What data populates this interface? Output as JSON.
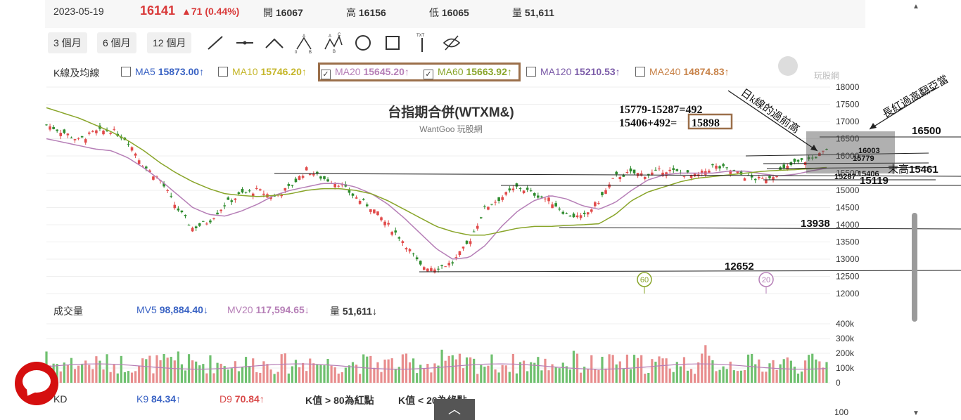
{
  "header": {
    "date": "2023-05-19",
    "price": "16141",
    "change": "▲71 (0.44%)",
    "open_label": "開",
    "open": "16067",
    "high_label": "高",
    "high": "16156",
    "low_label": "低",
    "low": "16065",
    "volume_label": "量",
    "volume": "51,611"
  },
  "periods": [
    "3 個月",
    "6 個月",
    "12 個月"
  ],
  "tools": [
    "line-tool-icon",
    "horizontal-line-icon",
    "angle-tool-icon",
    "abc-pattern-icon",
    "abcd-pattern-icon",
    "circle-tool-icon",
    "rectangle-tool-icon",
    "text-tool-icon",
    "hide-icon"
  ],
  "ma_legend": {
    "label": "K線及均線",
    "items": [
      {
        "name": "MA5",
        "value": "15873.00↑",
        "color": "#3a63c4",
        "checked": false
      },
      {
        "name": "MA10",
        "value": "15746.20↑",
        "color": "#c5b62a",
        "checked": false
      },
      {
        "name": "MA20",
        "value": "15645.20↑",
        "color": "#b67fb7",
        "checked": true
      },
      {
        "name": "MA60",
        "value": "15663.92↑",
        "color": "#89a52a",
        "checked": true
      },
      {
        "name": "MA120",
        "value": "15210.53↑",
        "color": "#7b5ba8",
        "checked": false
      },
      {
        "name": "MA240",
        "value": "14874.83↑",
        "color": "#c8834a",
        "checked": false
      }
    ]
  },
  "watermark": {
    "brand": "玩股網"
  },
  "volume_legend": {
    "label": "成交量",
    "mv5_name": "MV5",
    "mv5": "98,884.40↓",
    "mv20_name": "MV20",
    "mv20": "117,594.65↓",
    "vol_name": "量",
    "vol": "51,611↓"
  },
  "kd_legend": {
    "label": "KD",
    "k_name": "K9",
    "k": "84.34↑",
    "d_name": "D9",
    "d": "70.84↑",
    "note1": "K值 > 80為紅點",
    "note2": "K值 < 20為綠點"
  },
  "kd_axis_label": "100",
  "chart_data": {
    "type": "candlestick",
    "title": "台指期合併(WTXM&)",
    "subtitle": "WantGoo 玩股網",
    "y_ticks": [
      18000,
      17500,
      17000,
      16500,
      16000,
      15500,
      15000,
      14500,
      14000,
      13500,
      13000,
      12500,
      12000
    ],
    "ylim": [
      11800,
      18000
    ],
    "volume_ticks": [
      "400k",
      "300k",
      "200k",
      "100k",
      "0"
    ],
    "volume_ylim": [
      0,
      400000
    ],
    "colors": {
      "up": "#e14a4a",
      "down": "#2e8b2e",
      "ma20": "#b67fb7",
      "ma60": "#89a52a"
    },
    "close_path": [
      16900,
      16700,
      16450,
      16700,
      16750,
      16450,
      15700,
      15300,
      14500,
      13900,
      14100,
      14600,
      14900,
      15000,
      14800,
      15100,
      15600,
      15350,
      15200,
      14800,
      14500,
      14000,
      13500,
      12800,
      12750,
      12900,
      13500,
      14500,
      14800,
      15100,
      14900,
      14700,
      14300,
      14200,
      14700,
      15400,
      15500,
      15450,
      15600,
      15500,
      15400,
      15700,
      15600,
      15400,
      15300,
      15500,
      15780,
      15900,
      16141
    ],
    "ma20_path": [
      16500,
      16400,
      16300,
      16200,
      16150,
      15950,
      15650,
      15300,
      14900,
      14500,
      14300,
      14250,
      14400,
      14600,
      14850,
      15000,
      15100,
      15200,
      15200,
      15100,
      14900,
      14600,
      14200,
      13750,
      13300,
      13000,
      13050,
      13400,
      13950,
      14400,
      14700,
      14850,
      14750,
      14550,
      14450,
      14650,
      15000,
      15300,
      15450,
      15500,
      15500,
      15500,
      15560,
      15560,
      15480,
      15420,
      15460,
      15560,
      15645
    ],
    "ma60_path": [
      17400,
      17250,
      17100,
      16900,
      16700,
      16450,
      16150,
      15800,
      15500,
      15250,
      15050,
      14900,
      14850,
      14820,
      14850,
      14900,
      15000,
      15050,
      15050,
      15000,
      14900,
      14700,
      14450,
      14200,
      13950,
      13800,
      13700,
      13700,
      13800,
      13900,
      13950,
      13950,
      13980,
      14000,
      14030,
      14300,
      14700,
      14950,
      15100,
      15250,
      15350,
      15400,
      15450,
      15500,
      15550,
      15580,
      15600,
      15630,
      15664
    ],
    "annotations": [
      {
        "text": "15779-15287=492"
      },
      {
        "text": "15406+492=",
        "boxed": "15898"
      },
      {
        "text": "日k線的過前高"
      },
      {
        "text": "長紅過高翻亞當"
      },
      {
        "text": "16500",
        "value": 16500
      },
      {
        "text": "16003",
        "value": 16003
      },
      {
        "text": "15779",
        "value": 15779
      },
      {
        "text": "15406",
        "value": 15406
      },
      {
        "text": "15287",
        "value": 15287
      },
      {
        "text": "末高",
        "value": 15461
      },
      {
        "text": "15461",
        "value": 15461
      },
      {
        "text": "15119",
        "value": 15119
      },
      {
        "text": "13938",
        "value": 13938
      },
      {
        "text": "12652",
        "value": 12652
      }
    ],
    "markers": [
      {
        "text": "60"
      },
      {
        "text": "20"
      }
    ]
  }
}
